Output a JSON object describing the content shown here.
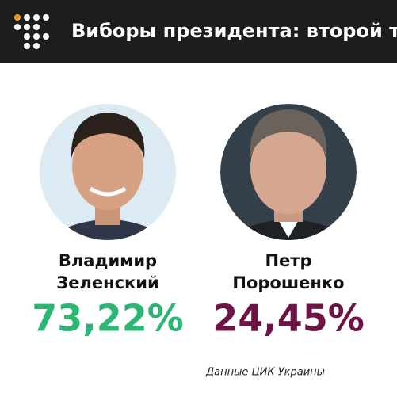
{
  "header": {
    "title": "Виборы президента: второй тур"
  },
  "candidates": [
    {
      "name": [
        "Владимир",
        "Зеленский"
      ],
      "result": "73,22%"
    },
    {
      "name": [
        "Петр",
        "Порошенко"
      ],
      "result": "24,45%"
    }
  ],
  "source": "Данные ЦИК Украины"
}
